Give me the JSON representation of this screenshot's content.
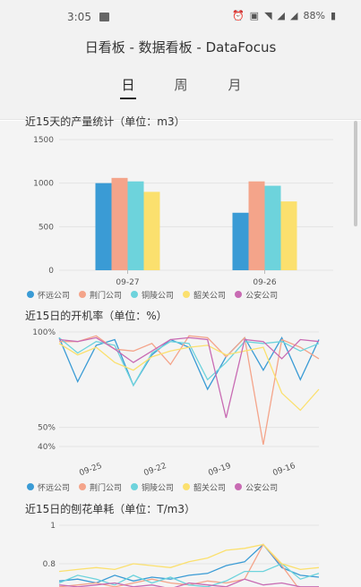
{
  "status_bar": {
    "time": "3:05",
    "battery": "88%"
  },
  "header": {
    "title": "日看板 - 数据看板 - DataFocus",
    "tabs": [
      {
        "label": "日",
        "active": true
      },
      {
        "label": "周",
        "active": false
      },
      {
        "label": "月",
        "active": false
      }
    ]
  },
  "series_colors": [
    "#3a9bd5",
    "#f4a48a",
    "#6dd3dc",
    "#fbe06e",
    "#c86bb3"
  ],
  "legend": [
    "怀远公司",
    "荆门公司",
    "铜陵公司",
    "韶关公司",
    "公安公司"
  ],
  "chart_data": [
    {
      "type": "bar",
      "title": "近15天的产量统计（单位：m3）",
      "categories": [
        "09-27",
        "09-26"
      ],
      "series": [
        {
          "name": "怀远公司",
          "values": [
            1000,
            660
          ]
        },
        {
          "name": "荆门公司",
          "values": [
            1060,
            1020
          ]
        },
        {
          "name": "铜陵公司",
          "values": [
            1020,
            970
          ]
        },
        {
          "name": "韶关公司",
          "values": [
            900,
            790
          ]
        },
        {
          "name": "公安公司",
          "values": [
            0,
            0
          ]
        }
      ],
      "yticks": [
        "0",
        "500",
        "1000",
        "1500"
      ],
      "ylim": [
        0,
        1500
      ]
    },
    {
      "type": "line",
      "title": "近15日的开机率（单位：%）",
      "yticks": [
        "100%",
        "50%",
        "40%"
      ],
      "ytick_values": [
        100,
        50,
        40
      ],
      "ylim": [
        40,
        100
      ],
      "xticks": [
        "09-25",
        "09-22",
        "09-19",
        "09-16"
      ],
      "series": [
        {
          "name": "怀远公司",
          "values": [
            97,
            74,
            93,
            96,
            72,
            88,
            96,
            92,
            70,
            87,
            97,
            80,
            97,
            75,
            96
          ]
        },
        {
          "name": "荆门公司",
          "values": [
            95,
            95,
            98,
            91,
            90,
            94,
            83,
            98,
            97,
            87,
            97,
            41,
            96,
            92,
            86
          ]
        },
        {
          "name": "铜陵公司",
          "values": [
            97,
            89,
            95,
            93,
            72,
            89,
            95,
            94,
            75,
            84,
            95,
            94,
            95,
            90,
            94
          ]
        },
        {
          "name": "韶关公司",
          "values": [
            94,
            88,
            92,
            84,
            80,
            87,
            90,
            92,
            93,
            88,
            90,
            92,
            68,
            59,
            70
          ]
        },
        {
          "name": "公安公司",
          "values": [
            96,
            95,
            97,
            91,
            84,
            90,
            96,
            97,
            96,
            55,
            96,
            95,
            86,
            96,
            95
          ]
        }
      ]
    },
    {
      "type": "line",
      "title": "近15日的刨花单耗（单位：T/m3）",
      "yticks": [
        "1",
        "0.8"
      ],
      "ytick_values": [
        1,
        0.8
      ],
      "ylim": [
        0.6,
        1
      ],
      "series": [
        {
          "name": "怀远公司",
          "values": [
            0.71,
            0.72,
            0.7,
            0.74,
            0.71,
            0.73,
            0.72,
            0.74,
            0.75,
            0.79,
            0.81,
            0.9,
            0.78,
            0.74,
            0.73
          ]
        },
        {
          "name": "荆门公司",
          "values": [
            0.68,
            0.69,
            0.7,
            0.68,
            0.7,
            0.72,
            0.7,
            0.69,
            0.71,
            0.7,
            0.72,
            0.9,
            0.79,
            0.66,
            0.68
          ]
        },
        {
          "name": "铜陵公司",
          "values": [
            0.7,
            0.74,
            0.72,
            0.69,
            0.74,
            0.7,
            0.73,
            0.69,
            0.68,
            0.71,
            0.76,
            0.76,
            0.8,
            0.72,
            0.75
          ]
        },
        {
          "name": "韶关公司",
          "values": [
            0.76,
            0.77,
            0.78,
            0.77,
            0.8,
            0.79,
            0.78,
            0.81,
            0.83,
            0.87,
            0.88,
            0.9,
            0.8,
            0.77,
            0.78
          ]
        },
        {
          "name": "公安公司",
          "values": [
            0.69,
            0.68,
            0.69,
            0.7,
            0.68,
            0.69,
            0.67,
            0.7,
            0.69,
            0.68,
            0.72,
            0.69,
            0.7,
            0.68,
            0.68
          ]
        }
      ]
    }
  ]
}
